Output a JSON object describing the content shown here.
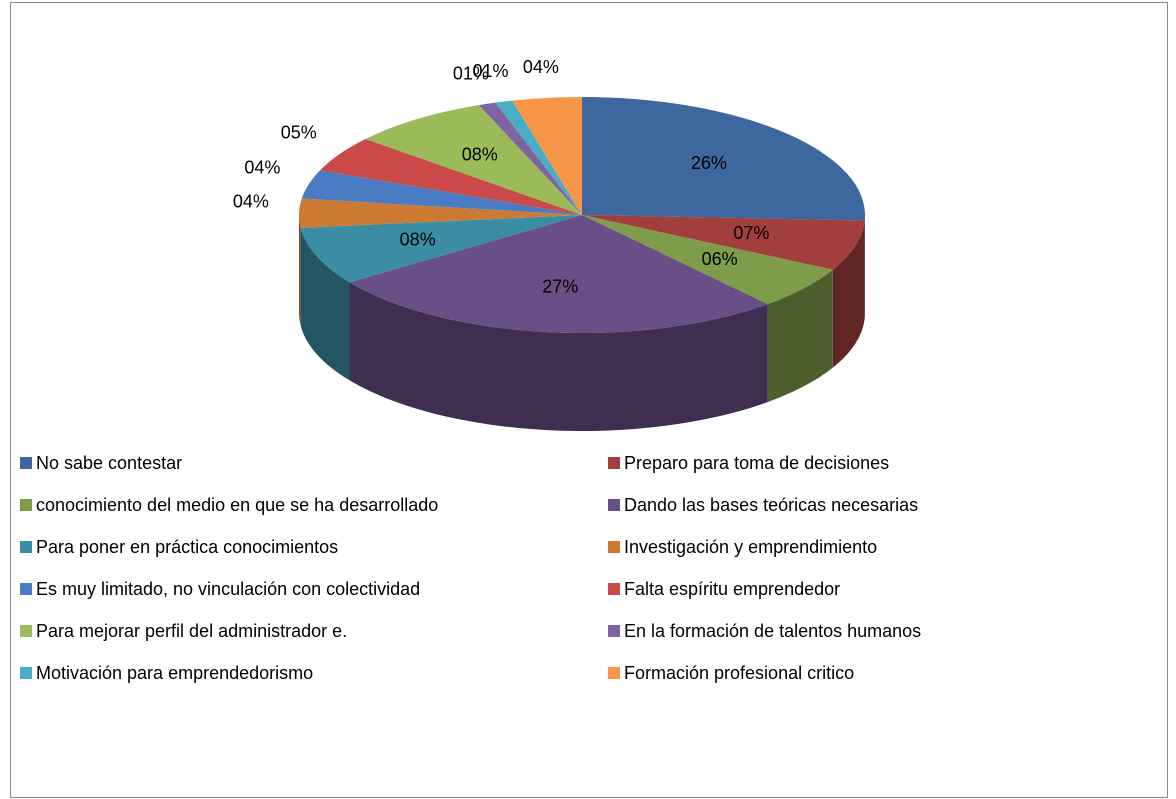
{
  "chart_data": {
    "type": "pie3d",
    "categories": [
      "No sabe contestar",
      "Preparo para toma de decisiones",
      "conocimiento del medio en que se ha desarrollado",
      "Dando las bases teóricas necesarias",
      "Para poner en práctica conocimientos",
      "Investigación y emprendimiento",
      "Es muy limitado, no  vinculación con colectividad",
      "Falta  espíritu emprendedor",
      "Para mejorar perfil del administrador e.",
      "En la formación de talentos humanos",
      "Motivación  para emprendedorismo",
      "Formación profesional critico"
    ],
    "values": [
      26,
      7,
      6,
      27,
      8,
      4,
      4,
      5,
      8,
      1,
      1,
      4
    ],
    "value_labels": [
      "26%",
      "07%",
      "06%",
      "27%",
      "08%",
      "04%",
      "04%",
      "05%",
      "08%",
      "01%",
      "01%",
      "04%"
    ],
    "colors": [
      "#3E67A0",
      "#A13F3C",
      "#7E9C4A",
      "#684F85",
      "#3A8DA3",
      "#CC7A33",
      "#4A7CC4",
      "#C94A48",
      "#9BBB59",
      "#8064A2",
      "#4BACC6",
      "#F79646"
    ],
    "legend": "bottom"
  }
}
